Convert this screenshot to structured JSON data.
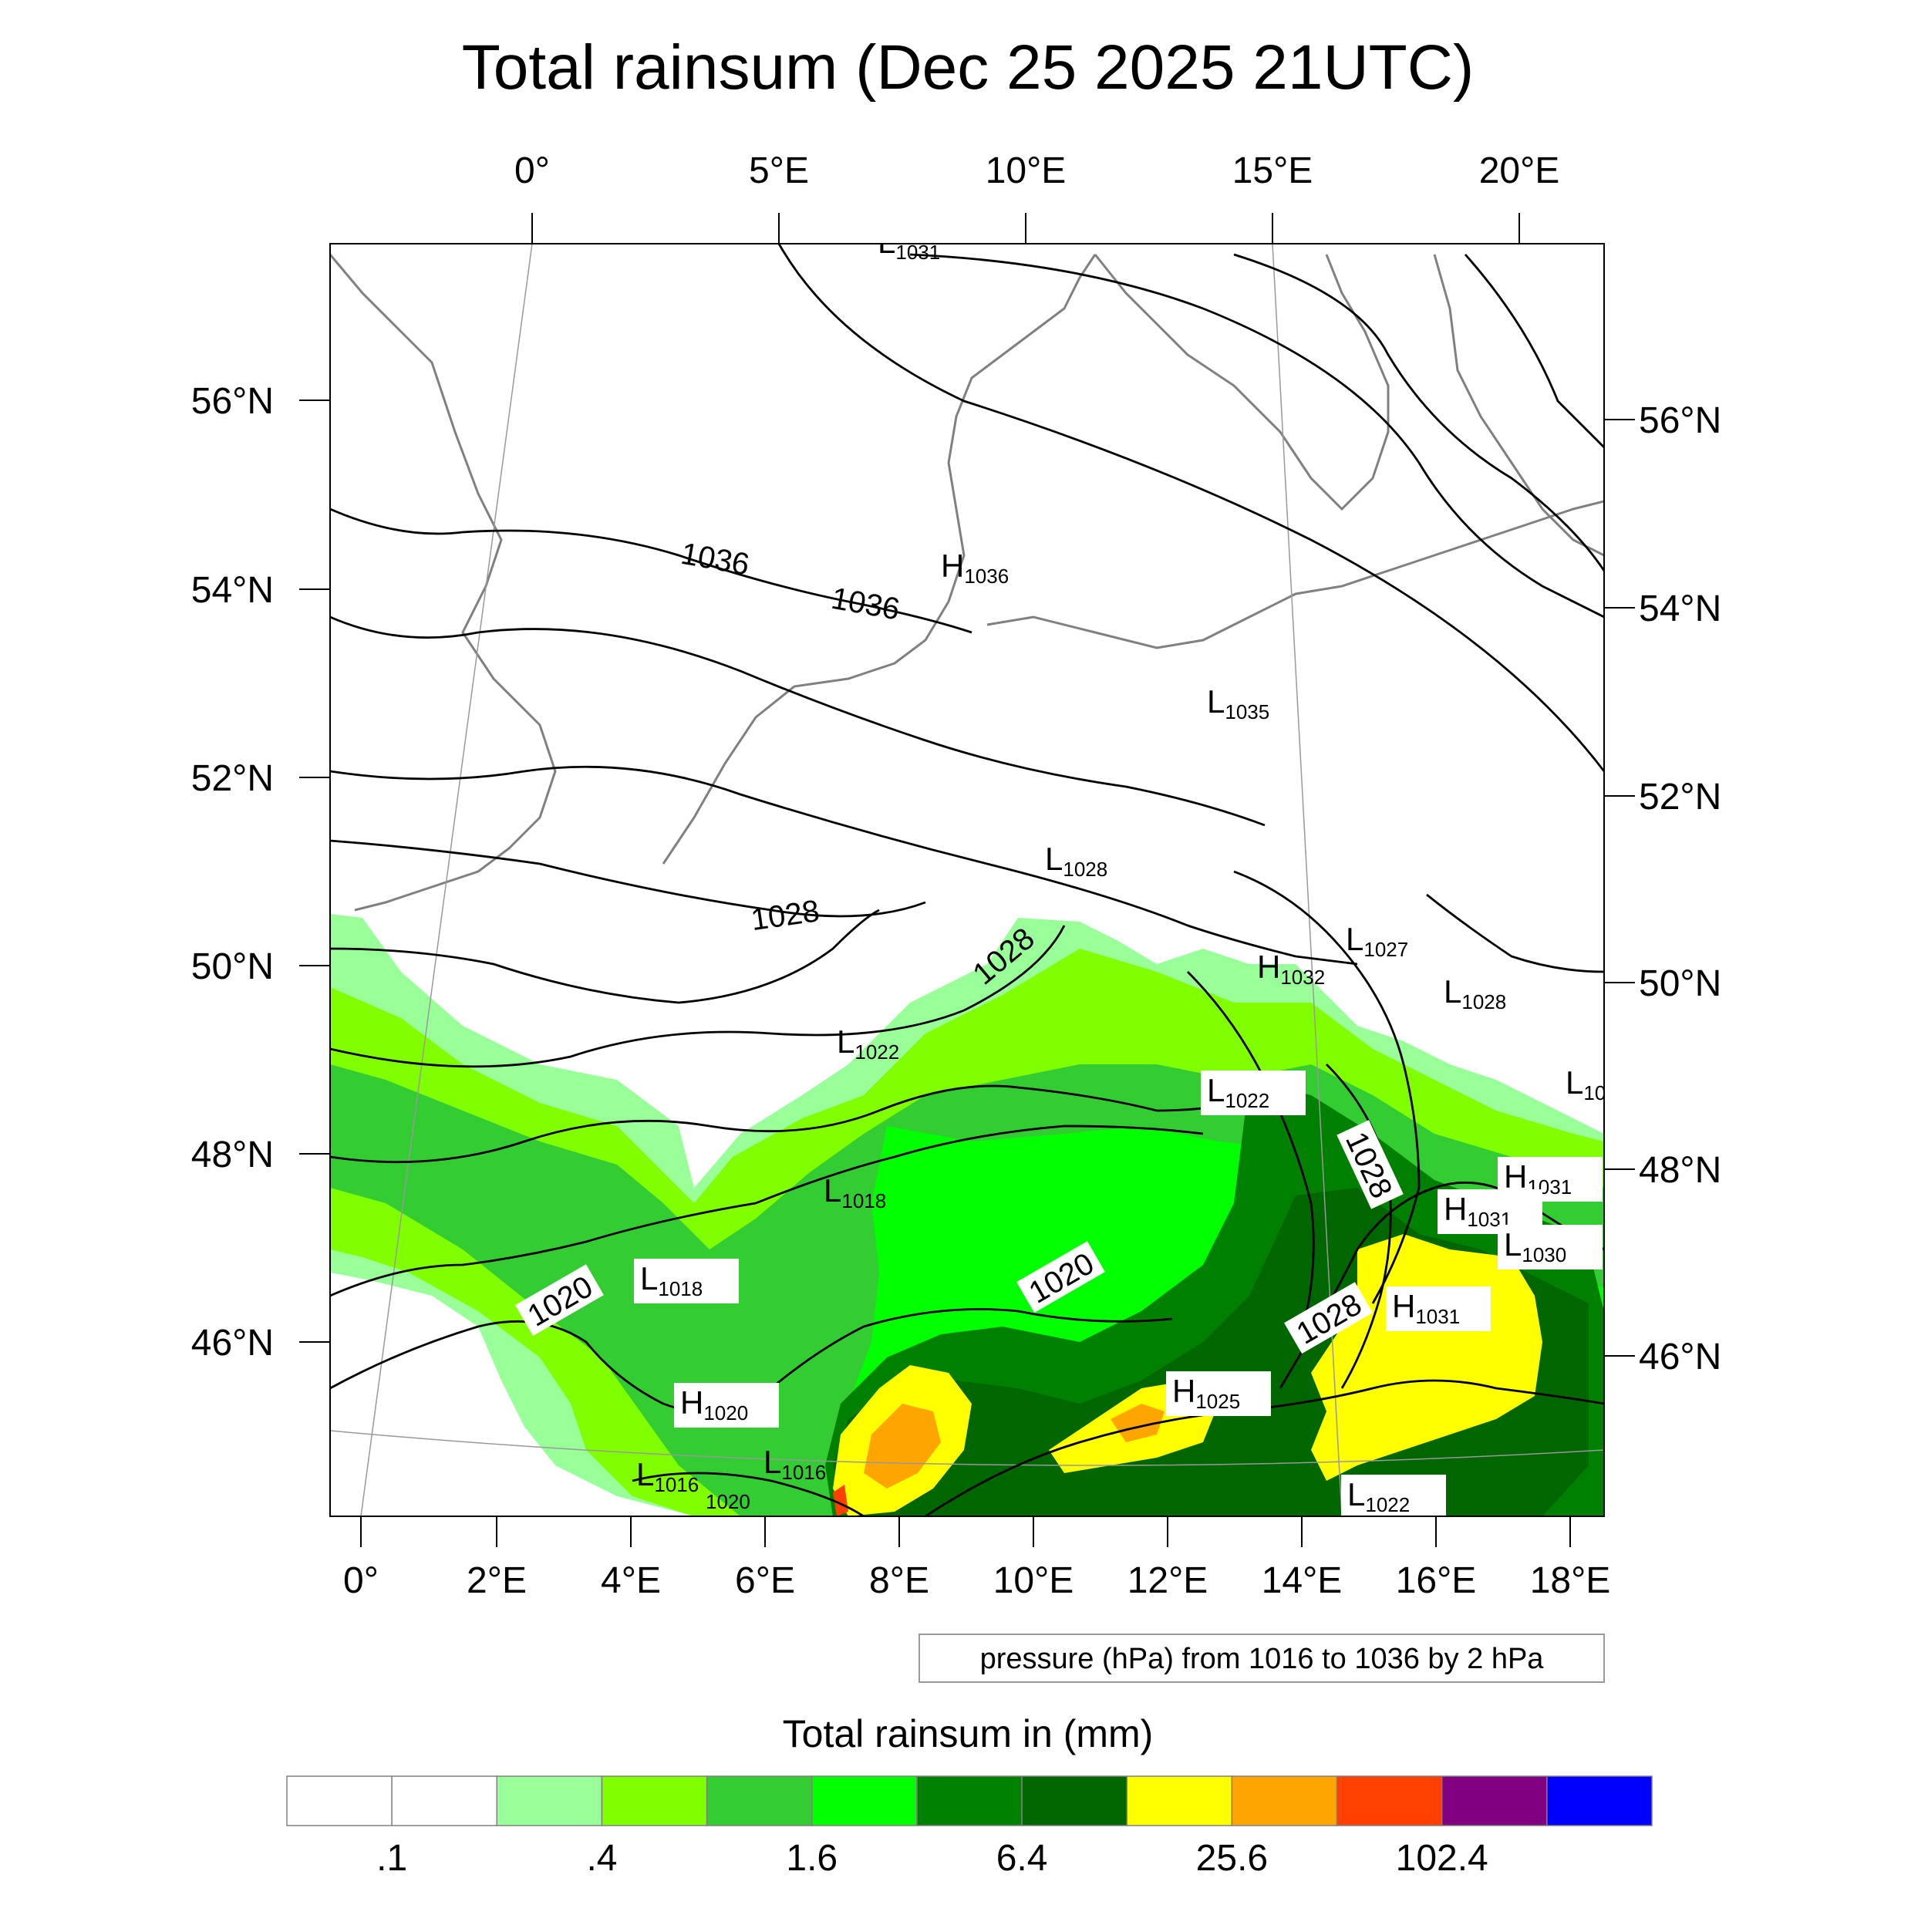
{
  "title": "Total rainsum (Dec 25 2025 21UTC)",
  "top_lon_labels": [
    "0°",
    "5°E",
    "10°E",
    "15°E",
    "20°E"
  ],
  "bottom_lon_labels": [
    "0°",
    "2°E",
    "4°E",
    "6°E",
    "8°E",
    "10°E",
    "12°E",
    "14°E",
    "16°E",
    "18°E"
  ],
  "left_lat_labels": [
    "56°N",
    "54°N",
    "52°N",
    "50°N",
    "48°N",
    "46°N"
  ],
  "right_lat_labels": [
    "56°N",
    "54°N",
    "52°N",
    "50°N",
    "48°N",
    "46°N"
  ],
  "pressure_info": "pressure (hPa) from 1016 to 1036 by 2 hPa",
  "isobar_labels": [
    "1036",
    "1036",
    "1028",
    "1028",
    "1020",
    "1020",
    "1028",
    "1028"
  ],
  "pressure_centers": [
    {
      "type": "L",
      "value": "1031"
    },
    {
      "type": "H",
      "value": "1036"
    },
    {
      "type": "L",
      "value": "1035"
    },
    {
      "type": "L",
      "value": "1028"
    },
    {
      "type": "L",
      "value": "1027"
    },
    {
      "type": "H",
      "value": "1032"
    },
    {
      "type": "L",
      "value": "1028"
    },
    {
      "type": "L",
      "value": "1022"
    },
    {
      "type": "L",
      "value": "1022"
    },
    {
      "type": "L",
      "value": "10"
    },
    {
      "type": "L",
      "value": "1018"
    },
    {
      "type": "H",
      "value": "1031"
    },
    {
      "type": "H",
      "value": "1031"
    },
    {
      "type": "L",
      "value": "1030"
    },
    {
      "type": "L",
      "value": "1018"
    },
    {
      "type": "H",
      "value": "1031"
    },
    {
      "type": "H",
      "value": "1020"
    },
    {
      "type": "H",
      "value": "1025"
    },
    {
      "type": "L",
      "value": "1016"
    },
    {
      "type": "L",
      "value": "1016"
    },
    {
      "type": "",
      "value": "1020"
    },
    {
      "type": "L",
      "value": "1022"
    }
  ],
  "legend": {
    "title": "Total rainsum in (mm)",
    "colors": [
      "#ffffff",
      "#ffffff",
      "#99ff99",
      "#80ff00",
      "#33cc33",
      "#00ff00",
      "#008000",
      "#006600",
      "#ffff00",
      "#ffa500",
      "#ff4000",
      "#800080",
      "#0000ff"
    ],
    "labels": [
      ".1",
      ".4",
      "1.6",
      "6.4",
      "25.6",
      "102.4"
    ]
  }
}
